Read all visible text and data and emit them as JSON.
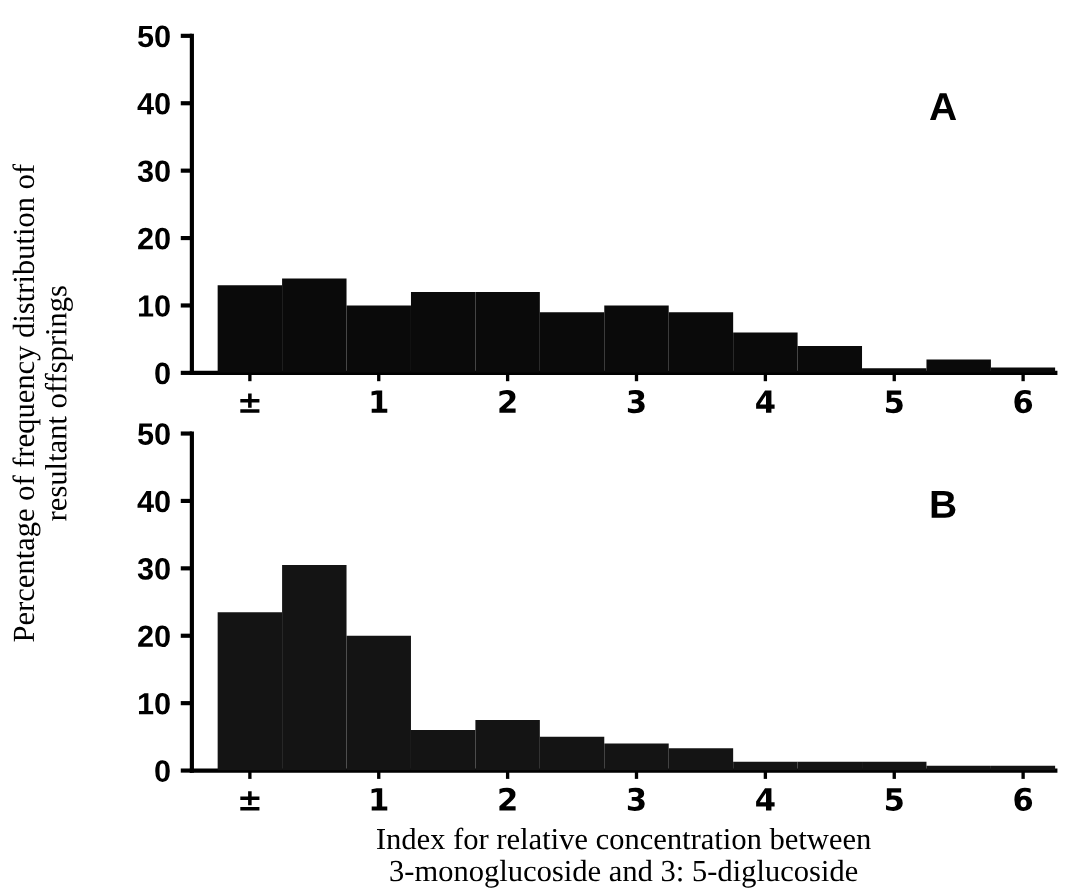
{
  "chart_data": [
    {
      "type": "histogram",
      "ylabel": "Percentage of frequency distribution of\nresultant offsprings",
      "annotations": [
        "A"
      ],
      "color": "#0a0a0a",
      "bins": [
        -0.25,
        0.25,
        0.75,
        1.25,
        1.75,
        2.25,
        2.75,
        3.25,
        3.75,
        4.25,
        4.75,
        5.25,
        5.75,
        6.25
      ],
      "values": [
        13,
        14,
        10,
        12,
        12,
        9,
        10,
        9,
        6,
        4,
        0.7,
        2,
        0.8
      ],
      "xlim": [
        -0.45,
        6.25
      ],
      "xticks": [
        {
          "value": 0,
          "label": "±"
        },
        1,
        2,
        3,
        4,
        5,
        6
      ],
      "ylim": [
        0,
        50
      ],
      "yticks": [
        0,
        10,
        20,
        30,
        40,
        50
      ],
      "grid": false,
      "legend": false
    },
    {
      "type": "histogram",
      "xlabel": "Index for relative concentration between\n3-monoglucoside and 3: 5-diglucoside",
      "annotations": [
        "B"
      ],
      "color": "#141414",
      "bins": [
        -0.25,
        0.25,
        0.75,
        1.25,
        1.75,
        2.25,
        2.75,
        3.25,
        3.75,
        4.25,
        4.75,
        5.25,
        5.75,
        6.25
      ],
      "values": [
        23.5,
        30.5,
        20,
        6,
        7.5,
        5,
        4,
        3.3,
        1.3,
        1.3,
        1.3,
        0.7,
        0.7
      ],
      "xlim": [
        -0.45,
        6.25
      ],
      "xticks": [
        {
          "value": 0,
          "label": "±"
        },
        1,
        2,
        3,
        4,
        5,
        6
      ],
      "ylim": [
        0,
        50
      ],
      "yticks": [
        0,
        10,
        20,
        30,
        40,
        50
      ],
      "grid": false,
      "legend": false
    }
  ]
}
